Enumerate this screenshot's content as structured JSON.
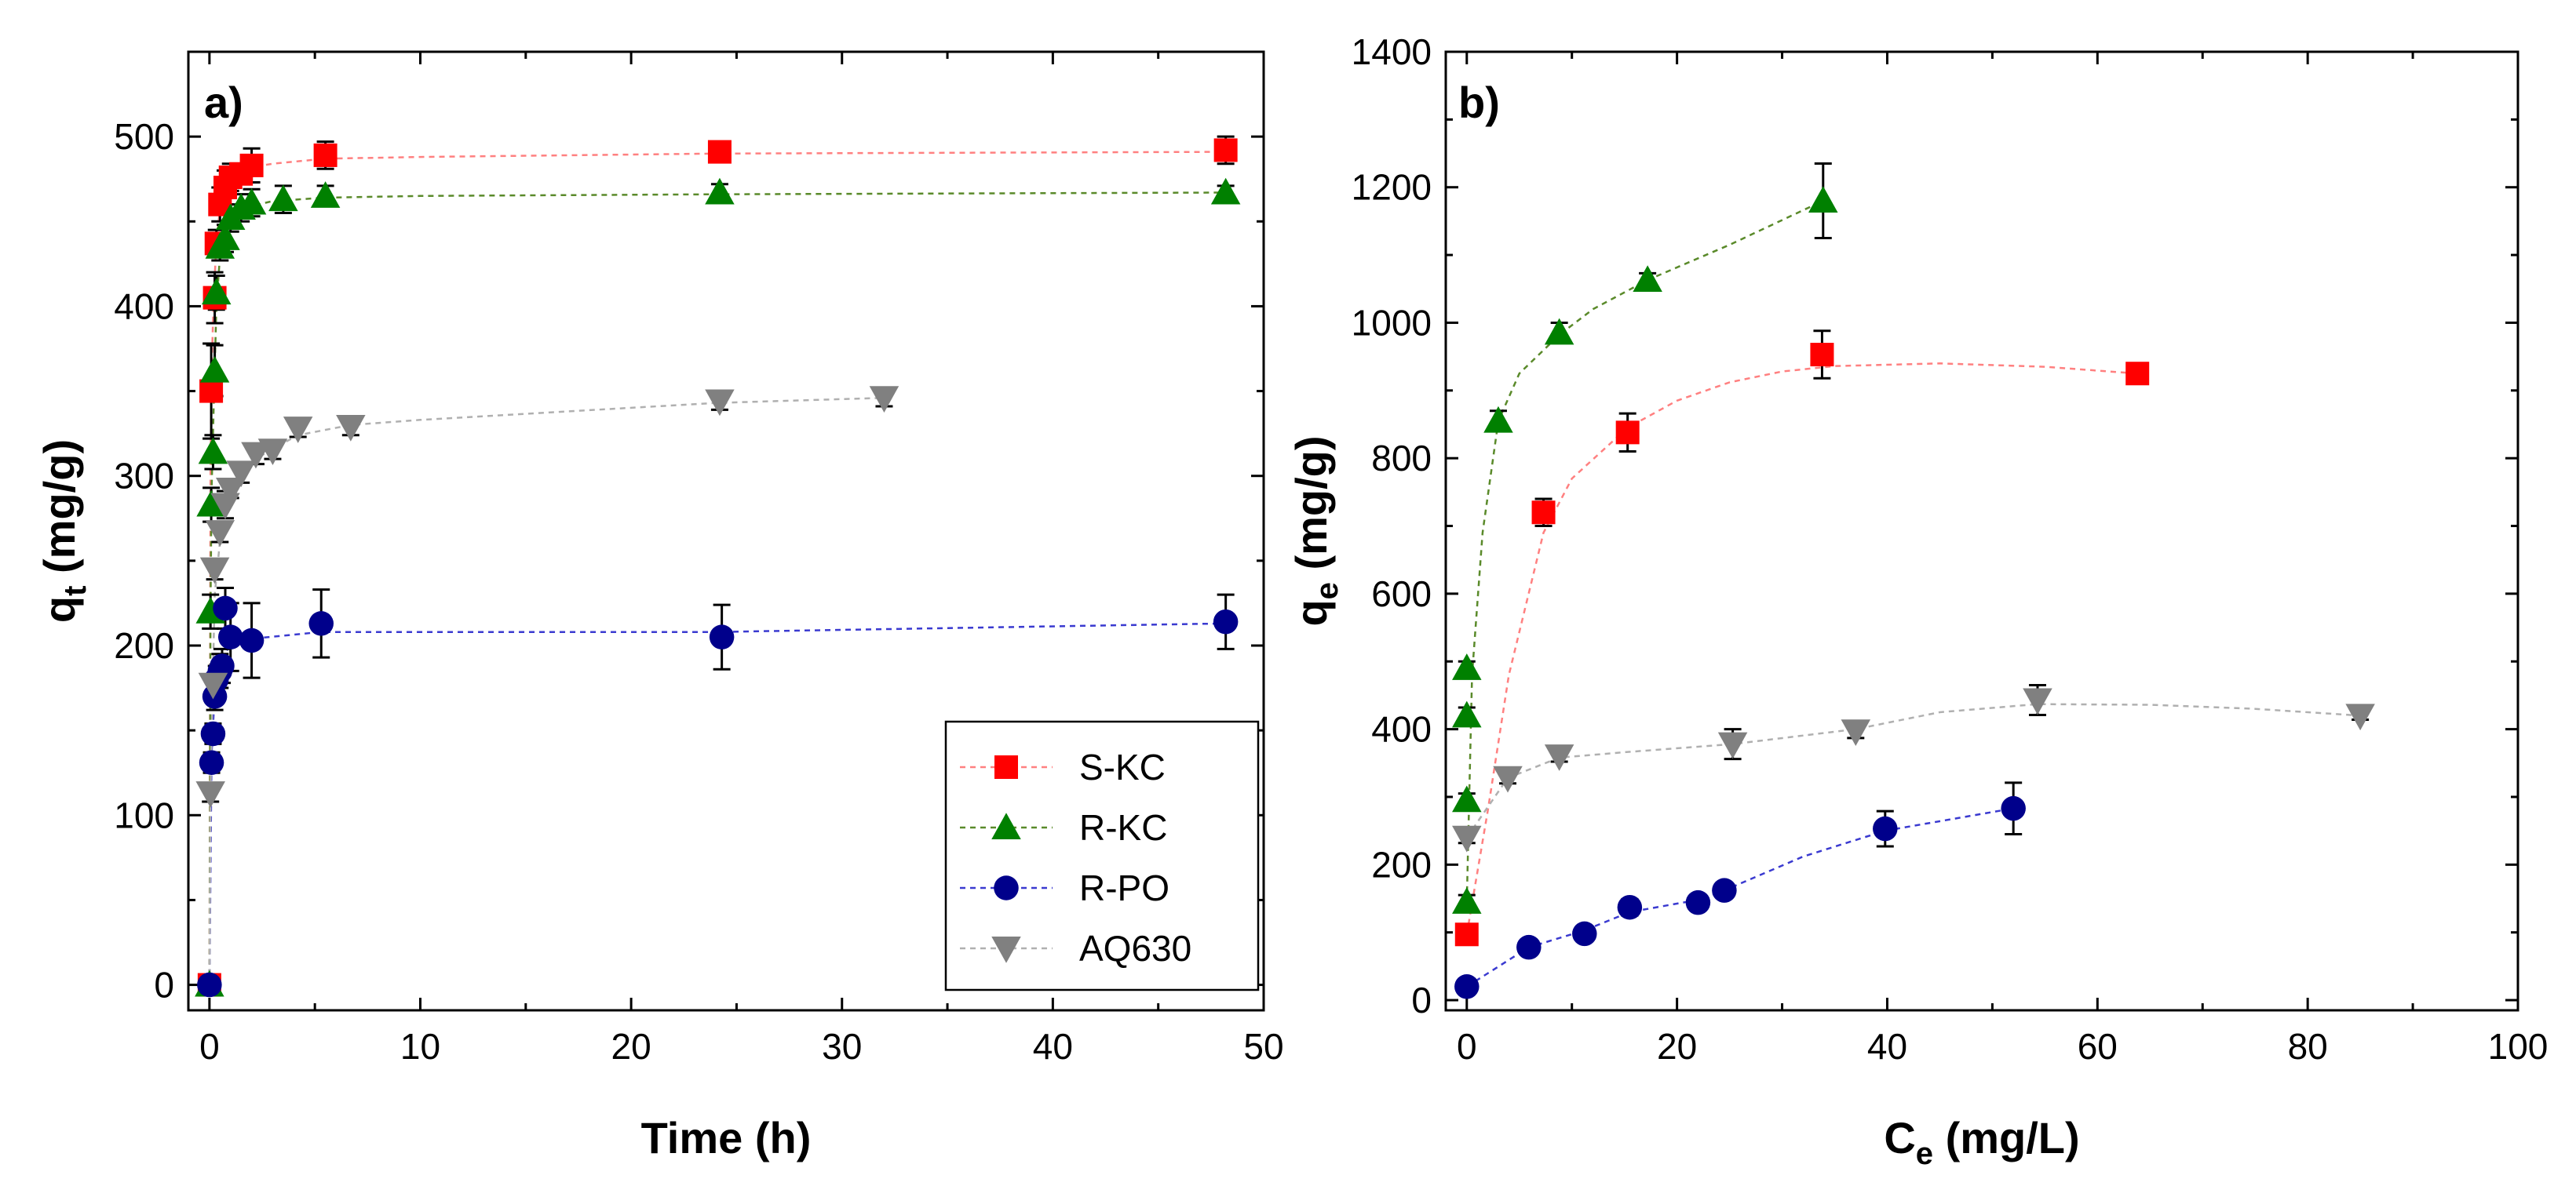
{
  "chart_data": [
    {
      "id": "a",
      "type": "scatter",
      "panel_label": "a)",
      "xlabel": "Time (h)",
      "ylabel_main": "q",
      "ylabel_sub": "t",
      "ylabel_unit": " (mg/g)",
      "xlim": [
        -1,
        50
      ],
      "ylim": [
        -15,
        550
      ],
      "xticks": [
        0,
        10,
        20,
        30,
        40,
        50
      ],
      "yticks": [
        0,
        100,
        200,
        300,
        400,
        500
      ],
      "legend_position": "bottom-right",
      "series": [
        {
          "name": "S-KC",
          "marker": "square",
          "color": "#ff0000",
          "line_color": "#ff8080",
          "points": [
            [
              0,
              0,
              0
            ],
            [
              0.083,
              350,
              28
            ],
            [
              0.25,
              405,
              15
            ],
            [
              0.33,
              437,
              8
            ],
            [
              0.5,
              460,
              10
            ],
            [
              0.75,
              470,
              10
            ],
            [
              1,
              476,
              8
            ],
            [
              1.5,
              478,
              6
            ],
            [
              2,
              483,
              10
            ],
            [
              5.5,
              489,
              8
            ],
            [
              24.2,
              491,
              6
            ],
            [
              48.2,
              492,
              8
            ]
          ],
          "fit": [
            [
              0,
              0
            ],
            [
              0.05,
              300
            ],
            [
              0.1,
              360
            ],
            [
              0.2,
              405
            ],
            [
              0.33,
              437
            ],
            [
              0.5,
              458
            ],
            [
              0.75,
              468
            ],
            [
              1,
              474
            ],
            [
              1.5,
              479
            ],
            [
              2,
              482
            ],
            [
              3,
              484
            ],
            [
              5.5,
              487
            ],
            [
              10,
              488
            ],
            [
              24,
              490
            ],
            [
              48,
              491
            ]
          ]
        },
        {
          "name": "R-KC",
          "marker": "triangle-up",
          "color": "#008000",
          "line_color": "#5a8a2a",
          "points": [
            [
              0,
              0,
              0
            ],
            [
              0.05,
              220,
              10
            ],
            [
              0.083,
              283,
              10
            ],
            [
              0.17,
              314,
              10
            ],
            [
              0.25,
              362,
              15
            ],
            [
              0.33,
              408,
              10
            ],
            [
              0.5,
              435,
              8
            ],
            [
              0.75,
              440,
              8
            ],
            [
              1,
              452,
              8
            ],
            [
              1.5,
              458,
              8
            ],
            [
              2,
              461,
              8
            ],
            [
              3.5,
              463,
              8
            ],
            [
              5.5,
              465,
              6
            ],
            [
              24.2,
              467,
              5
            ],
            [
              48.2,
              467,
              4
            ]
          ],
          "fit": [
            [
              0,
              0
            ],
            [
              0.05,
              220
            ],
            [
              0.1,
              290
            ],
            [
              0.2,
              340
            ],
            [
              0.33,
              400
            ],
            [
              0.5,
              430
            ],
            [
              0.75,
              442
            ],
            [
              1,
              450
            ],
            [
              1.5,
              456
            ],
            [
              2,
              459
            ],
            [
              3,
              462
            ],
            [
              5.5,
              464
            ],
            [
              10,
              465
            ],
            [
              24,
              466
            ],
            [
              48,
              467
            ]
          ]
        },
        {
          "name": "R-PO",
          "marker": "circle",
          "color": "#00008b",
          "line_color": "#3a3ad0",
          "points": [
            [
              0,
              0,
              0
            ],
            [
              0.1,
              131,
              6
            ],
            [
              0.17,
              148,
              6
            ],
            [
              0.25,
              170,
              8
            ],
            [
              0.33,
              180,
              8
            ],
            [
              0.5,
              185,
              10
            ],
            [
              0.6,
              188,
              10
            ],
            [
              0.75,
              222,
              12
            ],
            [
              1,
              205,
              20
            ],
            [
              2,
              203,
              22
            ],
            [
              5.3,
              213,
              20
            ],
            [
              24.3,
              205,
              19
            ],
            [
              48.2,
              214,
              16
            ]
          ],
          "fit": [
            [
              0,
              0
            ],
            [
              0.1,
              135
            ],
            [
              0.2,
              160
            ],
            [
              0.33,
              178
            ],
            [
              0.5,
              188
            ],
            [
              0.75,
              196
            ],
            [
              1,
              200
            ],
            [
              2,
              204
            ],
            [
              5.3,
              208
            ],
            [
              10,
              208
            ],
            [
              24,
              208
            ],
            [
              48,
              213
            ]
          ]
        },
        {
          "name": "AQ630",
          "marker": "triangle-down",
          "color": "#808080",
          "line_color": "#b0b0b0",
          "points": [
            [
              0.05,
              113,
              5
            ],
            [
              0.17,
              177,
              5
            ],
            [
              0.25,
              245,
              6
            ],
            [
              0.5,
              267,
              6
            ],
            [
              0.75,
              283,
              8
            ],
            [
              1,
              292,
              5
            ],
            [
              1.5,
              302,
              6
            ],
            [
              2.2,
              313,
              6
            ],
            [
              3,
              315,
              5
            ],
            [
              4.2,
              328,
              5
            ],
            [
              6.7,
              329,
              5
            ],
            [
              24.2,
              344,
              5
            ],
            [
              32,
              346,
              5
            ]
          ],
          "fit": [
            [
              0,
              0
            ],
            [
              0.05,
              113
            ],
            [
              0.15,
              175
            ],
            [
              0.25,
              230
            ],
            [
              0.5,
              262
            ],
            [
              0.75,
              280
            ],
            [
              1,
              290
            ],
            [
              1.5,
              300
            ],
            [
              2.2,
              310
            ],
            [
              3,
              316
            ],
            [
              4.2,
              324
            ],
            [
              6.7,
              330
            ],
            [
              10,
              333
            ],
            [
              24,
              343
            ],
            [
              32,
              346
            ]
          ]
        }
      ]
    },
    {
      "id": "b",
      "type": "scatter",
      "panel_label": "b)",
      "xlabel_main": "C",
      "xlabel_sub": "e",
      "xlabel_unit": " (mg/L)",
      "ylabel_main": "q",
      "ylabel_sub": "e",
      "ylabel_unit": " (mg/g)",
      "xlim": [
        -2,
        100
      ],
      "ylim": [
        -15,
        1400
      ],
      "xticks": [
        0,
        20,
        40,
        60,
        80,
        100
      ],
      "yticks": [
        0,
        200,
        400,
        600,
        800,
        1000,
        1200,
        1400
      ],
      "series": [
        {
          "name": "S-KC",
          "marker": "square",
          "color": "#ff0000",
          "line_color": "#ff8080",
          "points": [
            [
              0,
              97,
              6
            ],
            [
              7.3,
              720,
              20
            ],
            [
              15.3,
              838,
              28
            ],
            [
              33.8,
              953,
              35
            ],
            [
              63.8,
              925,
              6
            ]
          ],
          "fit": [
            [
              0,
              97
            ],
            [
              2,
              280
            ],
            [
              4,
              480
            ],
            [
              7.3,
              690
            ],
            [
              10,
              770
            ],
            [
              15.3,
              845
            ],
            [
              20,
              885
            ],
            [
              25,
              912
            ],
            [
              30,
              928
            ],
            [
              35,
              936
            ],
            [
              45,
              940
            ],
            [
              55,
              935
            ],
            [
              63.8,
              925
            ]
          ]
        },
        {
          "name": "R-KC",
          "marker": "triangle-up",
          "color": "#008000",
          "line_color": "#5a8a2a",
          "points": [
            [
              0,
              145,
              10
            ],
            [
              0,
              295,
              10
            ],
            [
              0,
              420,
              12
            ],
            [
              0,
              490,
              10
            ],
            [
              3,
              855,
              15
            ],
            [
              8.8,
              985,
              15
            ],
            [
              17.2,
              1063,
              10
            ],
            [
              33.9,
              1180,
              55
            ]
          ],
          "fit": [
            [
              0,
              145
            ],
            [
              0.5,
              480
            ],
            [
              1.5,
              690
            ],
            [
              3,
              855
            ],
            [
              5,
              925
            ],
            [
              8.8,
              982
            ],
            [
              12,
              1020
            ],
            [
              17.2,
              1063
            ],
            [
              25,
              1115
            ],
            [
              33.9,
              1180
            ]
          ]
        },
        {
          "name": "R-PO",
          "marker": "circle",
          "color": "#00008b",
          "line_color": "#3a3ad0",
          "points": [
            [
              0,
              20,
              5
            ],
            [
              5.9,
              78,
              8
            ],
            [
              11.2,
              98,
              8
            ],
            [
              15.5,
              137,
              12
            ],
            [
              22,
              144,
              10
            ],
            [
              24.5,
              162,
              10
            ],
            [
              39.8,
              253,
              26
            ],
            [
              52,
              283,
              38
            ]
          ],
          "fit": [
            [
              0,
              20
            ],
            [
              5.9,
              78
            ],
            [
              11.2,
              103
            ],
            [
              15.5,
              130
            ],
            [
              22,
              148
            ],
            [
              24.5,
              162
            ],
            [
              32,
              212
            ],
            [
              39.8,
              250
            ],
            [
              52,
              283
            ]
          ]
        },
        {
          "name": "AQ630",
          "marker": "triangle-down",
          "color": "#808080",
          "line_color": "#b0b0b0",
          "points": [
            [
              0,
              240,
              8
            ],
            [
              3.9,
              328,
              8
            ],
            [
              8.8,
              360,
              8
            ],
            [
              25.3,
              378,
              22
            ],
            [
              37,
              397,
              10
            ],
            [
              54.3,
              443,
              22
            ],
            [
              85,
              420,
              6
            ]
          ],
          "fit": [
            [
              0,
              240
            ],
            [
              3.9,
              328
            ],
            [
              8.8,
              358
            ],
            [
              15,
              366
            ],
            [
              25.3,
              378
            ],
            [
              37,
              400
            ],
            [
              45,
              425
            ],
            [
              54.3,
              437
            ],
            [
              65,
              436
            ],
            [
              75,
              430
            ],
            [
              85,
              420
            ]
          ]
        }
      ]
    }
  ]
}
